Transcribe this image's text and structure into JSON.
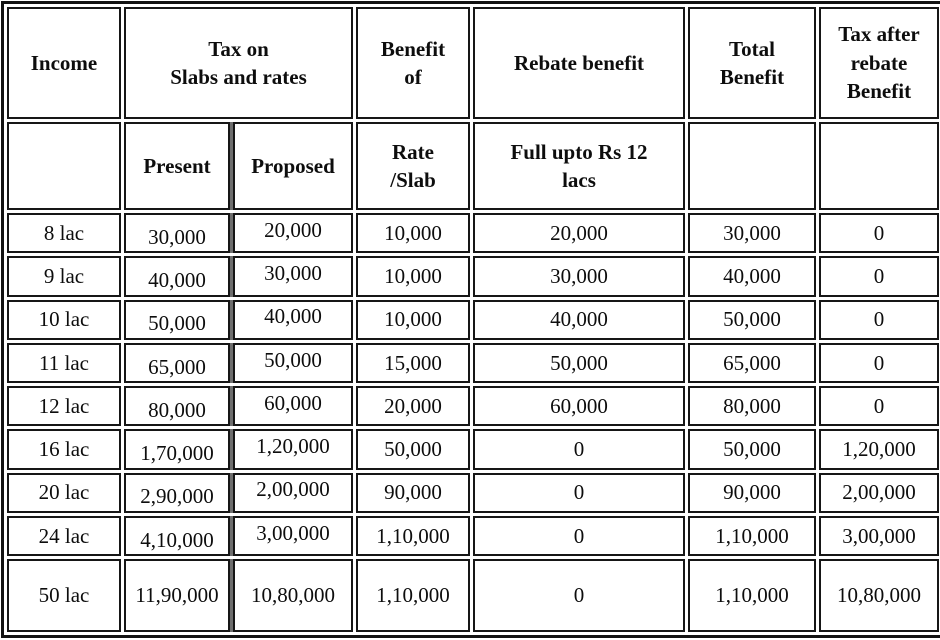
{
  "chart_data": {
    "type": "table",
    "header_groups": [
      {
        "label": "Income",
        "span": 1
      },
      {
        "label": "Tax on\nSlabs and rates",
        "span": 2
      },
      {
        "label": "Benefit\nof",
        "span": 1
      },
      {
        "label": "Rebate benefit",
        "span": 1
      },
      {
        "label": "Total\nBenefit",
        "span": 1
      },
      {
        "label": "Tax after\nrebate\nBenefit",
        "span": 1
      }
    ],
    "header_sub": [
      "",
      "Present",
      "Proposed",
      "Rate\n/Slab",
      "Full upto Rs 12\nlacs",
      "",
      ""
    ],
    "columns": [
      "Income",
      "Present",
      "Proposed",
      "Benefit of Rate/Slab",
      "Rebate benefit",
      "Total Benefit",
      "Tax after rebate Benefit"
    ],
    "rows": [
      [
        "8 lac",
        "30,000",
        "20,000",
        "10,000",
        "20,000",
        "30,000",
        "0"
      ],
      [
        "9 lac",
        "40,000",
        "30,000",
        "10,000",
        "30,000",
        "40,000",
        "0"
      ],
      [
        "10 lac",
        "50,000",
        "40,000",
        "10,000",
        "40,000",
        "50,000",
        "0"
      ],
      [
        "11 lac",
        "65,000",
        "50,000",
        "15,000",
        "50,000",
        "65,000",
        "0"
      ],
      [
        "12 lac",
        "80,000",
        "60,000",
        "20,000",
        "60,000",
        "80,000",
        "0"
      ],
      [
        "16 lac",
        "1,70,000",
        "1,20,000",
        "50,000",
        "0",
        "50,000",
        "1,20,000"
      ],
      [
        "20 lac",
        "2,90,000",
        "2,00,000",
        "90,000",
        "0",
        "90,000",
        "2,00,000"
      ],
      [
        "24 lac",
        "4,10,000",
        "3,00,000",
        "1,10,000",
        "0",
        "1,10,000",
        "3,00,000"
      ],
      [
        "50 lac",
        "11,90,000",
        "10,80,000",
        "1,10,000",
        "0",
        "1,10,000",
        "10,80,000"
      ]
    ],
    "style": {
      "border_color": "#121212",
      "shadow_color": "#6e6e6e",
      "background": "#ffffff",
      "text_color": "#0d0d0d"
    }
  }
}
